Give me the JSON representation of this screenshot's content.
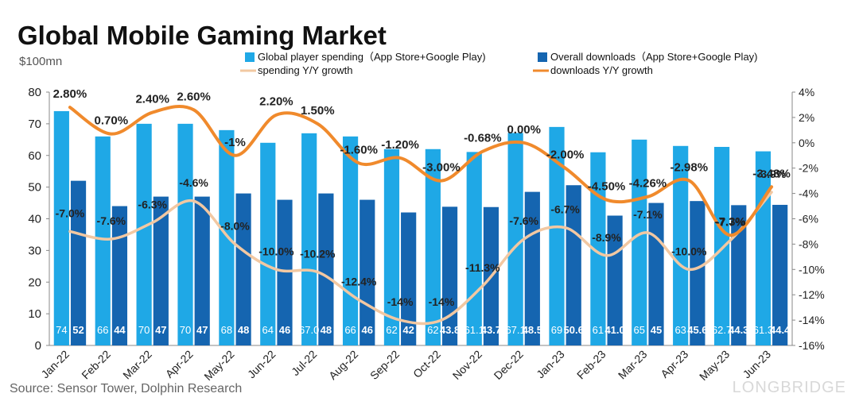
{
  "chart_data": {
    "type": "bar",
    "title": "Global Mobile Gaming Market",
    "unit_label": "$100mn",
    "source": "Source: Sensor Tower, Dolphin Research",
    "watermark": "LONGBRIDGE",
    "categories": [
      "Jan-22",
      "Feb-22",
      "Mar-22",
      "Apr-22",
      "May-22",
      "Jun-22",
      "Jul-22",
      "Aug-22",
      "Sep-22",
      "Oct-22",
      "Nov-22",
      "Dec-22",
      "Jan-23",
      "Feb-23",
      "Mar-23",
      "Apr-23",
      "May-23",
      "Jun-23"
    ],
    "left_axis": {
      "min": 0,
      "max": 80,
      "ticks": [
        "0",
        "10",
        "20",
        "30",
        "40",
        "50",
        "60",
        "70",
        "80"
      ]
    },
    "right_axis": {
      "min": -16,
      "max": 4,
      "ticks": [
        "-16%",
        "-14%",
        "-12%",
        "-10%",
        "-8%",
        "-6%",
        "-4%",
        "-2%",
        "0%",
        "2%",
        "4%"
      ]
    },
    "series": [
      {
        "name": "Global player spending（App Store+Google Play)",
        "type": "bar",
        "axis": "left",
        "color": "#1FA8E6",
        "values": [
          74,
          66,
          70,
          70,
          68,
          64,
          67.0,
          66,
          62,
          62,
          61.1,
          67.1,
          69,
          61,
          65,
          63,
          62.7,
          61.3
        ],
        "labels": [
          "74",
          "66",
          "70",
          "70",
          "68",
          "64",
          "67.0",
          "66",
          "62",
          "62",
          "61.1",
          "67.1",
          "69",
          "61",
          "65",
          "63",
          "62.7",
          "61.3"
        ]
      },
      {
        "name": "Overall downloads（App Store+Google Play)",
        "type": "bar",
        "axis": "left",
        "color": "#1565B0",
        "values": [
          52,
          44,
          47,
          47,
          48,
          46,
          48,
          46,
          42,
          43.8,
          43.7,
          48.5,
          50.6,
          41.0,
          45,
          45.6,
          44.3,
          44.4
        ],
        "labels": [
          "52",
          "44",
          "47",
          "47",
          "48",
          "46",
          "48",
          "46",
          "42",
          "43.8",
          "43.7",
          "48.5",
          "50.6",
          "41.0",
          "45",
          "45.6",
          "44.3",
          "44.4"
        ]
      },
      {
        "name": "spending Y/Y growth",
        "type": "line",
        "axis": "right",
        "color": "#F2C8A2",
        "values": [
          -7.0,
          -7.6,
          -6.3,
          -4.6,
          -8.0,
          -10.0,
          -10.2,
          -12.4,
          -14,
          -14,
          -11.3,
          -7.6,
          -6.7,
          -8.9,
          -7.1,
          -10.0,
          -7.7,
          -3.9
        ],
        "labels": [
          "-7.0%",
          "-7.6%",
          "-6.3%",
          "-4.6%",
          "-8.0%",
          "-10.0%",
          "-10.2%",
          "-12.4%",
          "-14%",
          "-14%",
          "-11.3%",
          "-7.6%",
          "-6.7%",
          "-8.9%",
          "-7.1%",
          "-10.0%",
          "-7.7%",
          "-3.9%"
        ]
      },
      {
        "name": "downloads Y/Y growth",
        "type": "line",
        "axis": "right",
        "color": "#F08A2C",
        "values": [
          2.8,
          0.7,
          2.4,
          2.6,
          -1,
          2.2,
          1.5,
          -1.6,
          -1.2,
          -3.0,
          -0.68,
          0.0,
          -2.0,
          -4.5,
          -4.26,
          -2.98,
          -7.3,
          -3.48
        ],
        "labels": [
          "2.80%",
          "0.70%",
          "2.40%",
          "2.60%",
          "-1%",
          "2.20%",
          "1.50%",
          "-1.60%",
          "-1.20%",
          "-3.00%",
          "-0.68%",
          "0.00%",
          "-2.00%",
          "-4.50%",
          "-4.26%",
          "-2.98%",
          "-7.3%",
          "-3.48%"
        ]
      }
    ],
    "legend_position": "top",
    "grid": false
  }
}
